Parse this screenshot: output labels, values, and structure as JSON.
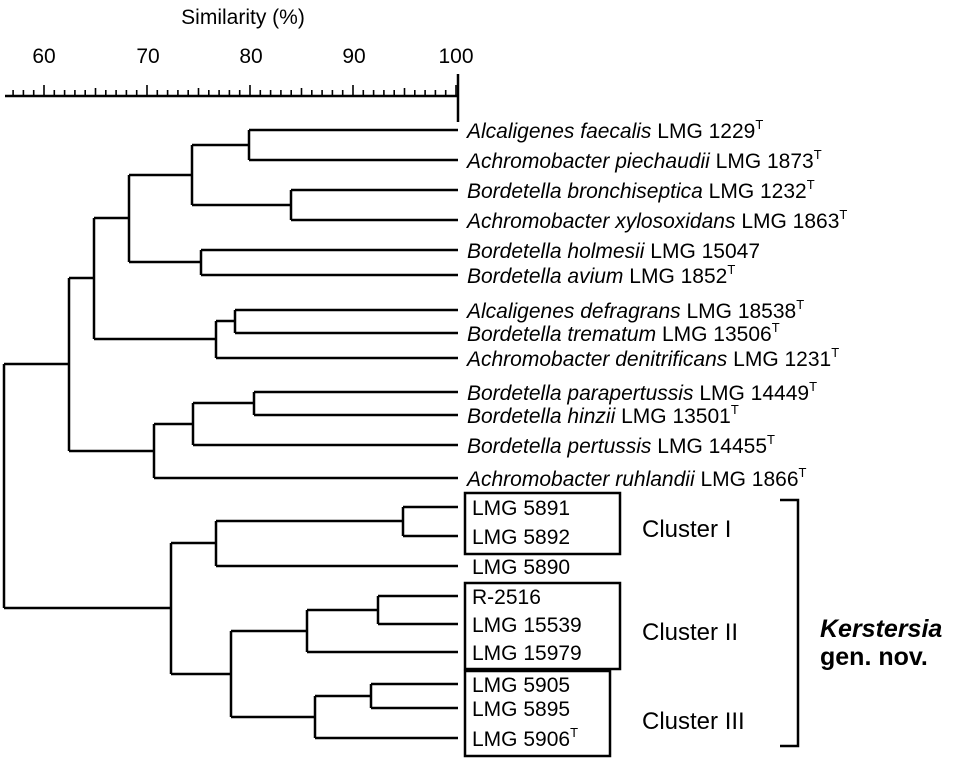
{
  "axis": {
    "title": "Similarity (%)",
    "ticks": [
      "60",
      "70",
      "80",
      "90",
      "100"
    ]
  },
  "taxa": [
    {
      "italic": "Alcaligenes faecalis",
      "strain": "LMG 1229",
      "sup": "T"
    },
    {
      "italic": "Achromobacter piechaudii",
      "strain": "LMG 1873",
      "sup": "T"
    },
    {
      "italic": "Bordetella bronchiseptica",
      "strain": "LMG 1232",
      "sup": "T"
    },
    {
      "italic": "Achromobacter xylosoxidans",
      "strain": "LMG 1863",
      "sup": "T"
    },
    {
      "italic": "Bordetella holmesii",
      "strain": "LMG 15047",
      "sup": ""
    },
    {
      "italic": "Bordetella avium",
      "strain": "LMG 1852",
      "sup": "T"
    },
    {
      "italic": "Alcaligenes defragrans",
      "strain": "LMG 18538",
      "sup": "T"
    },
    {
      "italic": "Bordetella trematum",
      "strain": "LMG 13506",
      "sup": "T"
    },
    {
      "italic": "Achromobacter denitrificans",
      "strain": "LMG 1231",
      "sup": "T"
    },
    {
      "italic": "Bordetella parapertussis",
      "strain": "LMG 14449",
      "sup": "T"
    },
    {
      "italic": "Bordetella hinzii",
      "strain": "LMG 13501",
      "sup": "T"
    },
    {
      "italic": "Bordetella pertussis",
      "strain": "LMG 14455",
      "sup": "T"
    },
    {
      "italic": "Achromobacter ruhlandii",
      "strain": "LMG 1866",
      "sup": "T"
    },
    {
      "italic": "",
      "strain": "LMG 5891",
      "sup": ""
    },
    {
      "italic": "",
      "strain": "LMG 5892",
      "sup": ""
    },
    {
      "italic": "",
      "strain": "LMG 5890",
      "sup": ""
    },
    {
      "italic": "",
      "strain": "R-2516",
      "sup": ""
    },
    {
      "italic": "",
      "strain": "LMG 15539",
      "sup": ""
    },
    {
      "italic": "",
      "strain": "LMG 15979",
      "sup": ""
    },
    {
      "italic": "",
      "strain": "LMG 5905",
      "sup": ""
    },
    {
      "italic": "",
      "strain": "LMG 5895",
      "sup": ""
    },
    {
      "italic": "",
      "strain": "LMG 5906",
      "sup": "T"
    }
  ],
  "clusters": [
    {
      "label": "Cluster I"
    },
    {
      "label": "Cluster II"
    },
    {
      "label": "Cluster III"
    }
  ],
  "genus": {
    "name": "Kerstersia",
    "suffix": "gen. nov."
  }
}
